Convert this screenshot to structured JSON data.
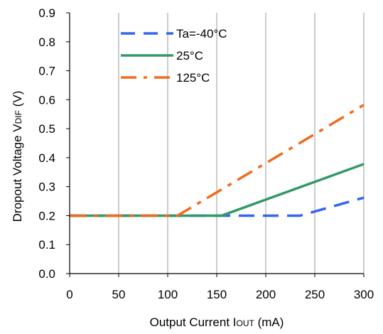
{
  "chart_data": {
    "type": "line",
    "x_unit_label": "Output Current I",
    "x_unit_sub": "OUT",
    "x_unit_suffix": " (mA)",
    "y_unit_label": "Dropout Voltage V",
    "y_unit_sub": "DIF",
    "y_unit_suffix": " (V)",
    "xlim": [
      0,
      300
    ],
    "ylim": [
      0,
      0.9
    ],
    "xticks": [
      0,
      50,
      100,
      150,
      200,
      250,
      300
    ],
    "xtick_labels": [
      "0",
      "50",
      "100",
      "150",
      "200",
      "250",
      "300"
    ],
    "yticks": [
      0,
      0.1,
      0.2,
      0.3,
      0.4,
      0.5,
      0.6,
      0.7,
      0.8,
      0.9
    ],
    "ytick_labels": [
      "0.0",
      "0.1",
      "0.2",
      "0.3",
      "0.4",
      "0.5",
      "0.6",
      "0.7",
      "0.8",
      "0.9"
    ],
    "grid": "vertical",
    "legend_position": "top-left",
    "series": [
      {
        "name": "Ta=-40°C",
        "color": "#3366ee",
        "style": "dashed",
        "x": [
          0,
          235,
          300
        ],
        "y": [
          0.2,
          0.2,
          0.262
        ]
      },
      {
        "name": "25°C",
        "color": "#339966",
        "style": "solid",
        "x": [
          0,
          155,
          300
        ],
        "y": [
          0.2,
          0.2,
          0.378
        ]
      },
      {
        "name": "125°C",
        "color": "#f26a1b",
        "style": "dash-dot",
        "x": [
          0,
          110,
          300
        ],
        "y": [
          0.2,
          0.2,
          0.582
        ]
      }
    ]
  }
}
